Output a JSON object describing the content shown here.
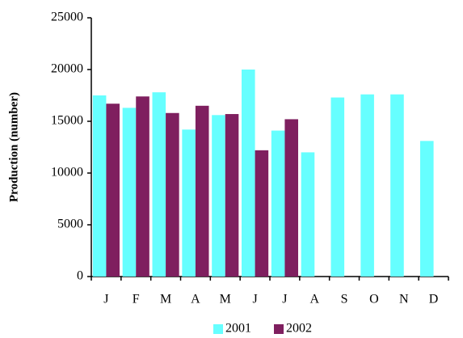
{
  "chart_data": {
    "type": "bar",
    "y_label": "Production (number)",
    "categories": [
      "J",
      "F",
      "M",
      "A",
      "M",
      "J",
      "J",
      "A",
      "S",
      "O",
      "N",
      "D"
    ],
    "series": [
      {
        "name": "2001",
        "color": "#66ffff",
        "values": [
          17500,
          16300,
          17800,
          14200,
          15600,
          20000,
          14100,
          12000,
          17300,
          17600,
          17600,
          13100
        ]
      },
      {
        "name": "2002",
        "color": "#7f1f5f",
        "values": [
          16700,
          17400,
          15800,
          16500,
          15700,
          12200,
          15200,
          null,
          null,
          null,
          null,
          null
        ]
      }
    ],
    "ylim": [
      0,
      25000
    ],
    "yticks": [
      0,
      5000,
      10000,
      15000,
      20000,
      25000
    ],
    "grid": false,
    "legend": "bottom"
  }
}
